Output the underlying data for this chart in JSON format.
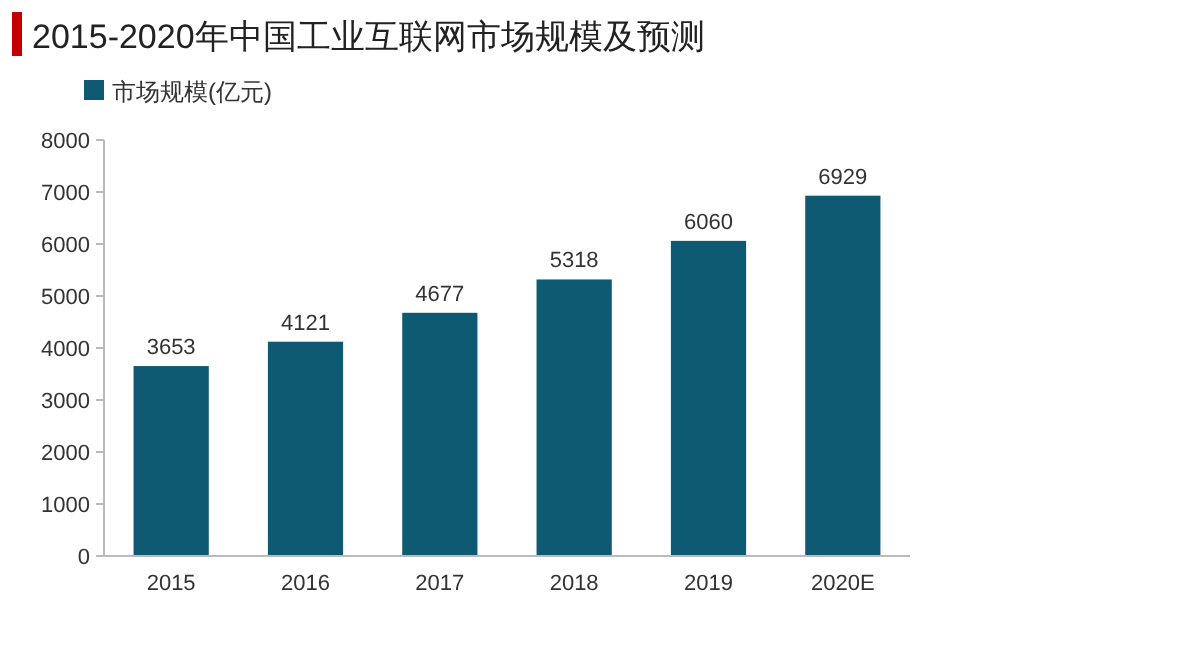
{
  "chart_data": {
    "type": "bar",
    "title": "2015-2020年中国工业互联网市场规模及预测",
    "categories": [
      "2015",
      "2016",
      "2017",
      "2018",
      "2019",
      "2020E"
    ],
    "series": [
      {
        "name": "市场规模(亿元)",
        "color": "#0e5a73",
        "values": [
          3653,
          4121,
          4677,
          5318,
          6060,
          6929
        ]
      }
    ],
    "ylim": [
      0,
      8000
    ],
    "yticks": [
      0,
      1000,
      2000,
      3000,
      4000,
      5000,
      6000,
      7000,
      8000
    ],
    "data_labels": true,
    "legend": "top left",
    "grid": false
  }
}
